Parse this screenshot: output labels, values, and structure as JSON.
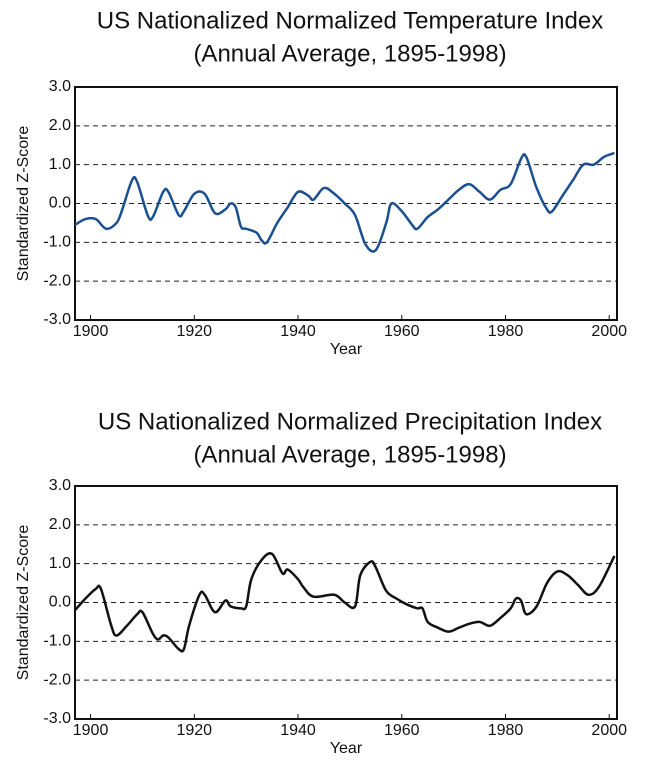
{
  "chart_data": [
    {
      "type": "line",
      "title": "US Nationalized Normalized Temperature Index",
      "subtitle": "(Annual Average, 1895-1998)",
      "x_label": "Year",
      "y_label": "Standardized Z-Score",
      "xlim": [
        1897,
        2001.5
      ],
      "xticks": [
        1900,
        1920,
        1940,
        1960,
        1980,
        2000
      ],
      "ylim": [
        -3,
        3
      ],
      "yticks": [
        {
          "value": -3,
          "label": "-3.0"
        },
        {
          "value": -2,
          "label": "-2.0"
        },
        {
          "value": -1,
          "label": "-1.0"
        },
        {
          "value": 0,
          "label": "0.0"
        },
        {
          "value": 1,
          "label": "1.0"
        },
        {
          "value": 2,
          "label": "2.0"
        },
        {
          "value": 3,
          "label": "3.0"
        }
      ],
      "grid": true,
      "x": [
        1897,
        1899,
        1901,
        1903,
        1905,
        1906,
        1908,
        1909,
        1911,
        1912,
        1914,
        1915,
        1917,
        1918,
        1920,
        1922,
        1924,
        1926,
        1927,
        1928,
        1929,
        1930,
        1932,
        1933,
        1934,
        1936,
        1938,
        1940,
        1942,
        1943,
        1945,
        1947,
        1949,
        1951,
        1953,
        1955,
        1957,
        1958,
        1960,
        1962,
        1963,
        1965,
        1967,
        1969,
        1971,
        1973,
        1975,
        1977,
        1979,
        1981,
        1983,
        1984,
        1986,
        1988,
        1989,
        1991,
        1993,
        1995,
        1997,
        1999,
        2001
      ],
      "series": [
        {
          "color": "#1a4f90",
          "values": [
            -0.55,
            -0.4,
            -0.4,
            -0.65,
            -0.5,
            -0.2,
            0.6,
            0.55,
            -0.3,
            -0.35,
            0.3,
            0.3,
            -0.3,
            -0.2,
            0.25,
            0.25,
            -0.25,
            -0.15,
            0.0,
            -0.1,
            -0.6,
            -0.65,
            -0.75,
            -0.95,
            -1.0,
            -0.5,
            -0.1,
            0.3,
            0.2,
            0.1,
            0.4,
            0.25,
            0.0,
            -0.3,
            -1.05,
            -1.2,
            -0.5,
            0.0,
            -0.2,
            -0.55,
            -0.65,
            -0.35,
            -0.15,
            0.1,
            0.35,
            0.5,
            0.3,
            0.1,
            0.35,
            0.5,
            1.15,
            1.2,
            0.4,
            -0.15,
            -0.2,
            0.2,
            0.6,
            1.0,
            1.0,
            1.2,
            1.3
          ]
        }
      ]
    },
    {
      "type": "line",
      "title": "US Nationalized Normalized Precipitation Index",
      "subtitle": "(Annual Average, 1895-1998)",
      "x_label": "Year",
      "y_label": "Standardized Z-Score",
      "xlim": [
        1897,
        2001.5
      ],
      "xticks": [
        1900,
        1920,
        1940,
        1960,
        1980,
        2000
      ],
      "ylim": [
        -3,
        3
      ],
      "yticks": [
        {
          "value": -3,
          "label": "-3.0"
        },
        {
          "value": -2,
          "label": "-2.0"
        },
        {
          "value": -1,
          "label": "-1.0"
        },
        {
          "value": 0,
          "label": "0.0"
        },
        {
          "value": 1,
          "label": "1.0"
        },
        {
          "value": 2,
          "label": "2.0"
        },
        {
          "value": 3,
          "label": "3.0"
        }
      ],
      "grid": true,
      "x": [
        1897,
        1899,
        1901,
        1902,
        1904,
        1905,
        1907,
        1909,
        1910,
        1912,
        1913,
        1914,
        1915,
        1917,
        1918,
        1919,
        1921,
        1922,
        1924,
        1926,
        1927,
        1929,
        1930,
        1931,
        1933,
        1935,
        1937,
        1938,
        1940,
        1941,
        1943,
        1947,
        1949,
        1951,
        1952,
        1954,
        1955,
        1957,
        1959,
        1961,
        1963,
        1964,
        1965,
        1967,
        1969,
        1971,
        1973,
        1975,
        1977,
        1979,
        1981,
        1982,
        1983,
        1984,
        1986,
        1988,
        1990,
        1992,
        1994,
        1996,
        1998,
        2001
      ],
      "series": [
        {
          "color": "#111111",
          "values": [
            -0.2,
            0.1,
            0.35,
            0.35,
            -0.6,
            -0.85,
            -0.6,
            -0.3,
            -0.25,
            -0.8,
            -0.95,
            -0.85,
            -0.9,
            -1.2,
            -1.2,
            -0.6,
            0.2,
            0.2,
            -0.25,
            0.05,
            -0.1,
            -0.15,
            -0.1,
            0.6,
            1.1,
            1.25,
            0.75,
            0.85,
            0.6,
            0.4,
            0.15,
            0.2,
            0.0,
            -0.1,
            0.7,
            1.05,
            0.9,
            0.3,
            0.1,
            -0.05,
            -0.15,
            -0.15,
            -0.5,
            -0.65,
            -0.75,
            -0.65,
            -0.55,
            -0.5,
            -0.6,
            -0.4,
            -0.15,
            0.1,
            0.05,
            -0.3,
            -0.1,
            0.5,
            0.8,
            0.7,
            0.45,
            0.2,
            0.4,
            1.2
          ]
        }
      ]
    }
  ]
}
